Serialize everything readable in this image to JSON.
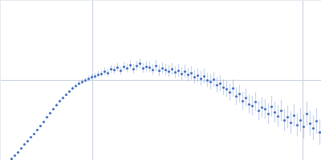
{
  "chart_data": {
    "type": "scatter",
    "x": [
      14,
      18,
      22,
      26,
      30,
      34,
      38,
      42,
      46,
      50,
      54,
      58,
      62,
      66,
      70,
      74,
      78,
      82,
      86,
      90,
      94,
      98,
      102,
      106,
      110,
      114,
      118,
      122,
      126,
      130,
      134,
      138,
      142,
      146,
      150,
      154,
      158,
      162,
      166,
      170,
      174,
      178,
      182,
      186,
      190,
      194,
      198,
      202,
      206,
      210,
      214,
      218,
      222,
      226,
      230,
      234,
      238,
      242,
      246,
      250,
      254,
      258,
      262,
      266,
      270,
      274,
      278,
      282,
      286,
      290,
      294,
      298,
      302,
      306,
      310,
      314,
      318,
      322,
      326,
      330,
      334,
      338,
      342,
      346,
      350,
      354,
      358,
      362,
      366,
      370,
      374,
      378,
      382,
      386,
      390,
      394,
      398
    ],
    "values": [
      2,
      6,
      10,
      15,
      20,
      24,
      29,
      33,
      38,
      43,
      48,
      54,
      59,
      64,
      69,
      74,
      78,
      82,
      86,
      90,
      93,
      96,
      98,
      100,
      102,
      104,
      105,
      107,
      108,
      111,
      109,
      114,
      113,
      116,
      112,
      117,
      115,
      119,
      114,
      118,
      121,
      115,
      117,
      116,
      113,
      118,
      112,
      115,
      113,
      111,
      114,
      110,
      112,
      108,
      111,
      107,
      109,
      104,
      106,
      102,
      105,
      100,
      98,
      101,
      94,
      96,
      91,
      89,
      85,
      90,
      80,
      83,
      74,
      78,
      70,
      68,
      73,
      62,
      66,
      64,
      58,
      67,
      60,
      55,
      62,
      50,
      54,
      47,
      56,
      44,
      50,
      42,
      58,
      46,
      40,
      49,
      35
    ],
    "errors": [
      1,
      1,
      1,
      1,
      1,
      1,
      1,
      1,
      1,
      1.5,
      1.5,
      1.5,
      1.5,
      1.5,
      2,
      2,
      2,
      2,
      2,
      2.5,
      2.5,
      3,
      3,
      3,
      3.5,
      3.5,
      4,
      4,
      4,
      4.5,
      4.5,
      5,
      5,
      5,
      5,
      5.5,
      5.5,
      5.5,
      6,
      6,
      6,
      6,
      6.5,
      6.5,
      6.5,
      7,
      7,
      7,
      7,
      7.5,
      7.5,
      7.5,
      8,
      8,
      8,
      8,
      8.5,
      8.5,
      8.5,
      9,
      9,
      9,
      9.5,
      9.5,
      9.5,
      10,
      10,
      10,
      10.5,
      10.5,
      11,
      11,
      11,
      11.5,
      11.5,
      12,
      12,
      12,
      12.5,
      12.5,
      13,
      13,
      13,
      13.5,
      13.5,
      14,
      14,
      14,
      14.5,
      14.5,
      15,
      15,
      15,
      15.5,
      15.5,
      16,
      16
    ],
    "color": "#4472c4",
    "xlim": [
      0,
      400
    ],
    "ylim": [
      0,
      200
    ],
    "xticks": [
      115,
      377
    ],
    "yticks": [
      100
    ],
    "grid": true,
    "tick_labels": false
  }
}
